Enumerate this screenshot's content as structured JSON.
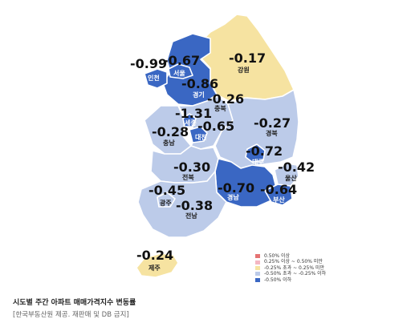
{
  "legend": [
    {
      "label": "0.50% 이상",
      "color": "#e57373"
    },
    {
      "label": "0.25% 이상 ~ 0.50% 미만",
      "color": "#f4b6c2"
    },
    {
      "label": "-0.25% 초과 ~ 0.25% 미만",
      "color": "#f6e3a1"
    },
    {
      "label": "-0.50% 초과 ~ -0.25% 이하",
      "color": "#bccbe9"
    },
    {
      "label": "-0.50% 이하",
      "color": "#3a67c3"
    }
  ],
  "regions": {
    "incheon": {
      "name": "인천",
      "value": "-0.99",
      "color": "#3a67c3"
    },
    "seoul": {
      "name": "서울",
      "value": "-0.67",
      "color": "#3a67c3"
    },
    "gyeonggi": {
      "name": "경기",
      "value": "-0.86",
      "color": "#3a67c3"
    },
    "gangwon": {
      "name": "강원",
      "value": "-0.17",
      "color": "#f6e3a1"
    },
    "chungbuk": {
      "name": "충북",
      "value": "-0.26",
      "color": "#bccbe9"
    },
    "sejong": {
      "name": "세종",
      "value": "-1.31",
      "color": "#3a67c3"
    },
    "daejeon": {
      "name": "대전",
      "value": "-0.65",
      "color": "#3a67c3"
    },
    "chungnam": {
      "name": "충남",
      "value": "-0.28",
      "color": "#bccbe9"
    },
    "gyeongbuk": {
      "name": "경북",
      "value": "-0.27",
      "color": "#bccbe9"
    },
    "daegu": {
      "name": "대구",
      "value": "-0.72",
      "color": "#3a67c3"
    },
    "ulsan": {
      "name": "울산",
      "value": "-0.42",
      "color": "#bccbe9"
    },
    "jeonbuk": {
      "name": "전북",
      "value": "-0.30",
      "color": "#bccbe9"
    },
    "gyeongnam": {
      "name": "경남",
      "value": "-0.70",
      "color": "#3a67c3"
    },
    "busan": {
      "name": "부산",
      "value": "-0.64",
      "color": "#3a67c3"
    },
    "gwangju": {
      "name": "광주",
      "value": "-0.45",
      "color": "#bccbe9"
    },
    "jeonnam": {
      "name": "전남",
      "value": "-0.38",
      "color": "#bccbe9"
    },
    "jeju": {
      "name": "제주",
      "value": "-0.24",
      "color": "#f6e3a1"
    }
  },
  "caption": "시도별 주간 아파트 매매가격지수 변동률",
  "source": "[한국부동산원 제공. 재판매 및 DB 금지]"
}
